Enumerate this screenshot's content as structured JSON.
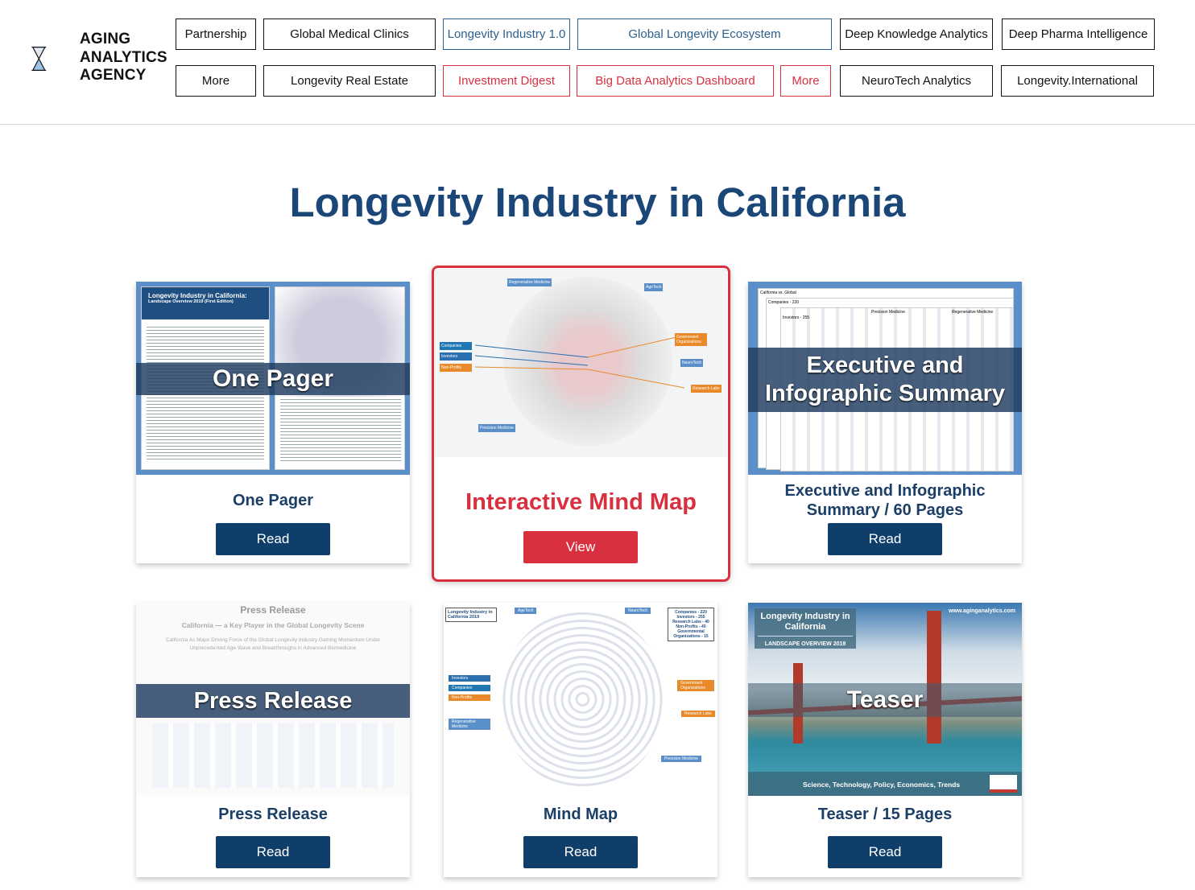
{
  "logo": {
    "lines": [
      "AGING",
      "ANALYTICS",
      "AGENCY"
    ]
  },
  "nav": {
    "row1": [
      {
        "label": "Partnership",
        "style": "default"
      },
      {
        "label": "Global Medical Clinics",
        "style": "default"
      },
      {
        "label": "Longevity Industry 1.0",
        "style": "blue"
      },
      {
        "label": "Global Longevity Ecosystem",
        "style": "blue"
      },
      {
        "label": "Deep Knowledge Analytics",
        "style": "default"
      },
      {
        "label": "Deep Pharma Intelligence",
        "style": "default"
      }
    ],
    "row2": [
      {
        "label": "More",
        "style": "default"
      },
      {
        "label": "Longevity Real Estate",
        "style": "default"
      },
      {
        "label": "Investment Digest",
        "style": "red"
      },
      {
        "label": "Big Data Analytics Dashboard",
        "style": "red"
      },
      {
        "label": "More",
        "style": "red"
      },
      {
        "label": "NeuroTech Analytics",
        "style": "default"
      },
      {
        "label": "Longevity.International",
        "style": "default"
      }
    ]
  },
  "page_title": "Longevity Industry in California",
  "colors": {
    "brand_navy": "#0f3e6b",
    "title_blue": "#1b4778",
    "accent_red": "#d9303f",
    "link_blue": "#2b5f8e"
  },
  "cards": [
    {
      "thumb_overlay": "One Pager",
      "thumb_title": "Longevity Industry in California:",
      "thumb_subtitle": "Landscape Overview 2019 (First Edition)",
      "label": "One Pager",
      "button": "Read"
    },
    {
      "thumb_tags": [
        "Regenerative Medicine",
        "AgeTech",
        "Companies",
        "Investors",
        "Non-Profits",
        "Government Organizations",
        "NeuroTech",
        "Research Labs",
        "Precision Medicine"
      ],
      "label": "Interactive Mind Map",
      "button": "View",
      "highlighted": true
    },
    {
      "thumb_overlay": "Executive and Infographic Summary",
      "thumb_tags": [
        "California vs. Global",
        "Companies - 220",
        "Investors - 255",
        "Precision Medicine",
        "Regenerative Medicine"
      ],
      "label": "Executive and Infographic Summary / 60 Pages",
      "button": "Read"
    },
    {
      "thumb_overlay": "Press Release",
      "thumb_heading": "Press Release",
      "thumb_subheading": "California — a Key Player in the Global Longevity Scene",
      "thumb_text": "California As Major Driving Force of the Global Longevity Industry Gaining Momentum Under Unprecedented Age Wave and Breakthroughs in Advanced Biomedicine",
      "label": "Press Release",
      "button": "Read"
    },
    {
      "thumb_box": "Longevity Industry in California 2019",
      "thumb_tags": [
        "AgeTech",
        "NeuroTech",
        "Investors",
        "Companies",
        "Non-Profits",
        "Regenerative Medicine",
        "Government Organizations",
        "Research Labs",
        "Precision Medicine"
      ],
      "thumb_stats": "Companies - 220 Investors - 255 Research Labs - 40 Non-Profits - 40 Governmental Organizations - 15",
      "label": "Mind Map",
      "button": "Read"
    },
    {
      "thumb_overlay": "Teaser",
      "thumb_title": "Longevity Industry in California",
      "thumb_subtitle": "LANDSCAPE OVERVIEW 2019",
      "thumb_url": "www.aginganalytics.com",
      "thumb_footer": "Science, Technology, Policy, Economics, Trends",
      "label": "Teaser / 15 Pages",
      "button": "Read"
    }
  ]
}
